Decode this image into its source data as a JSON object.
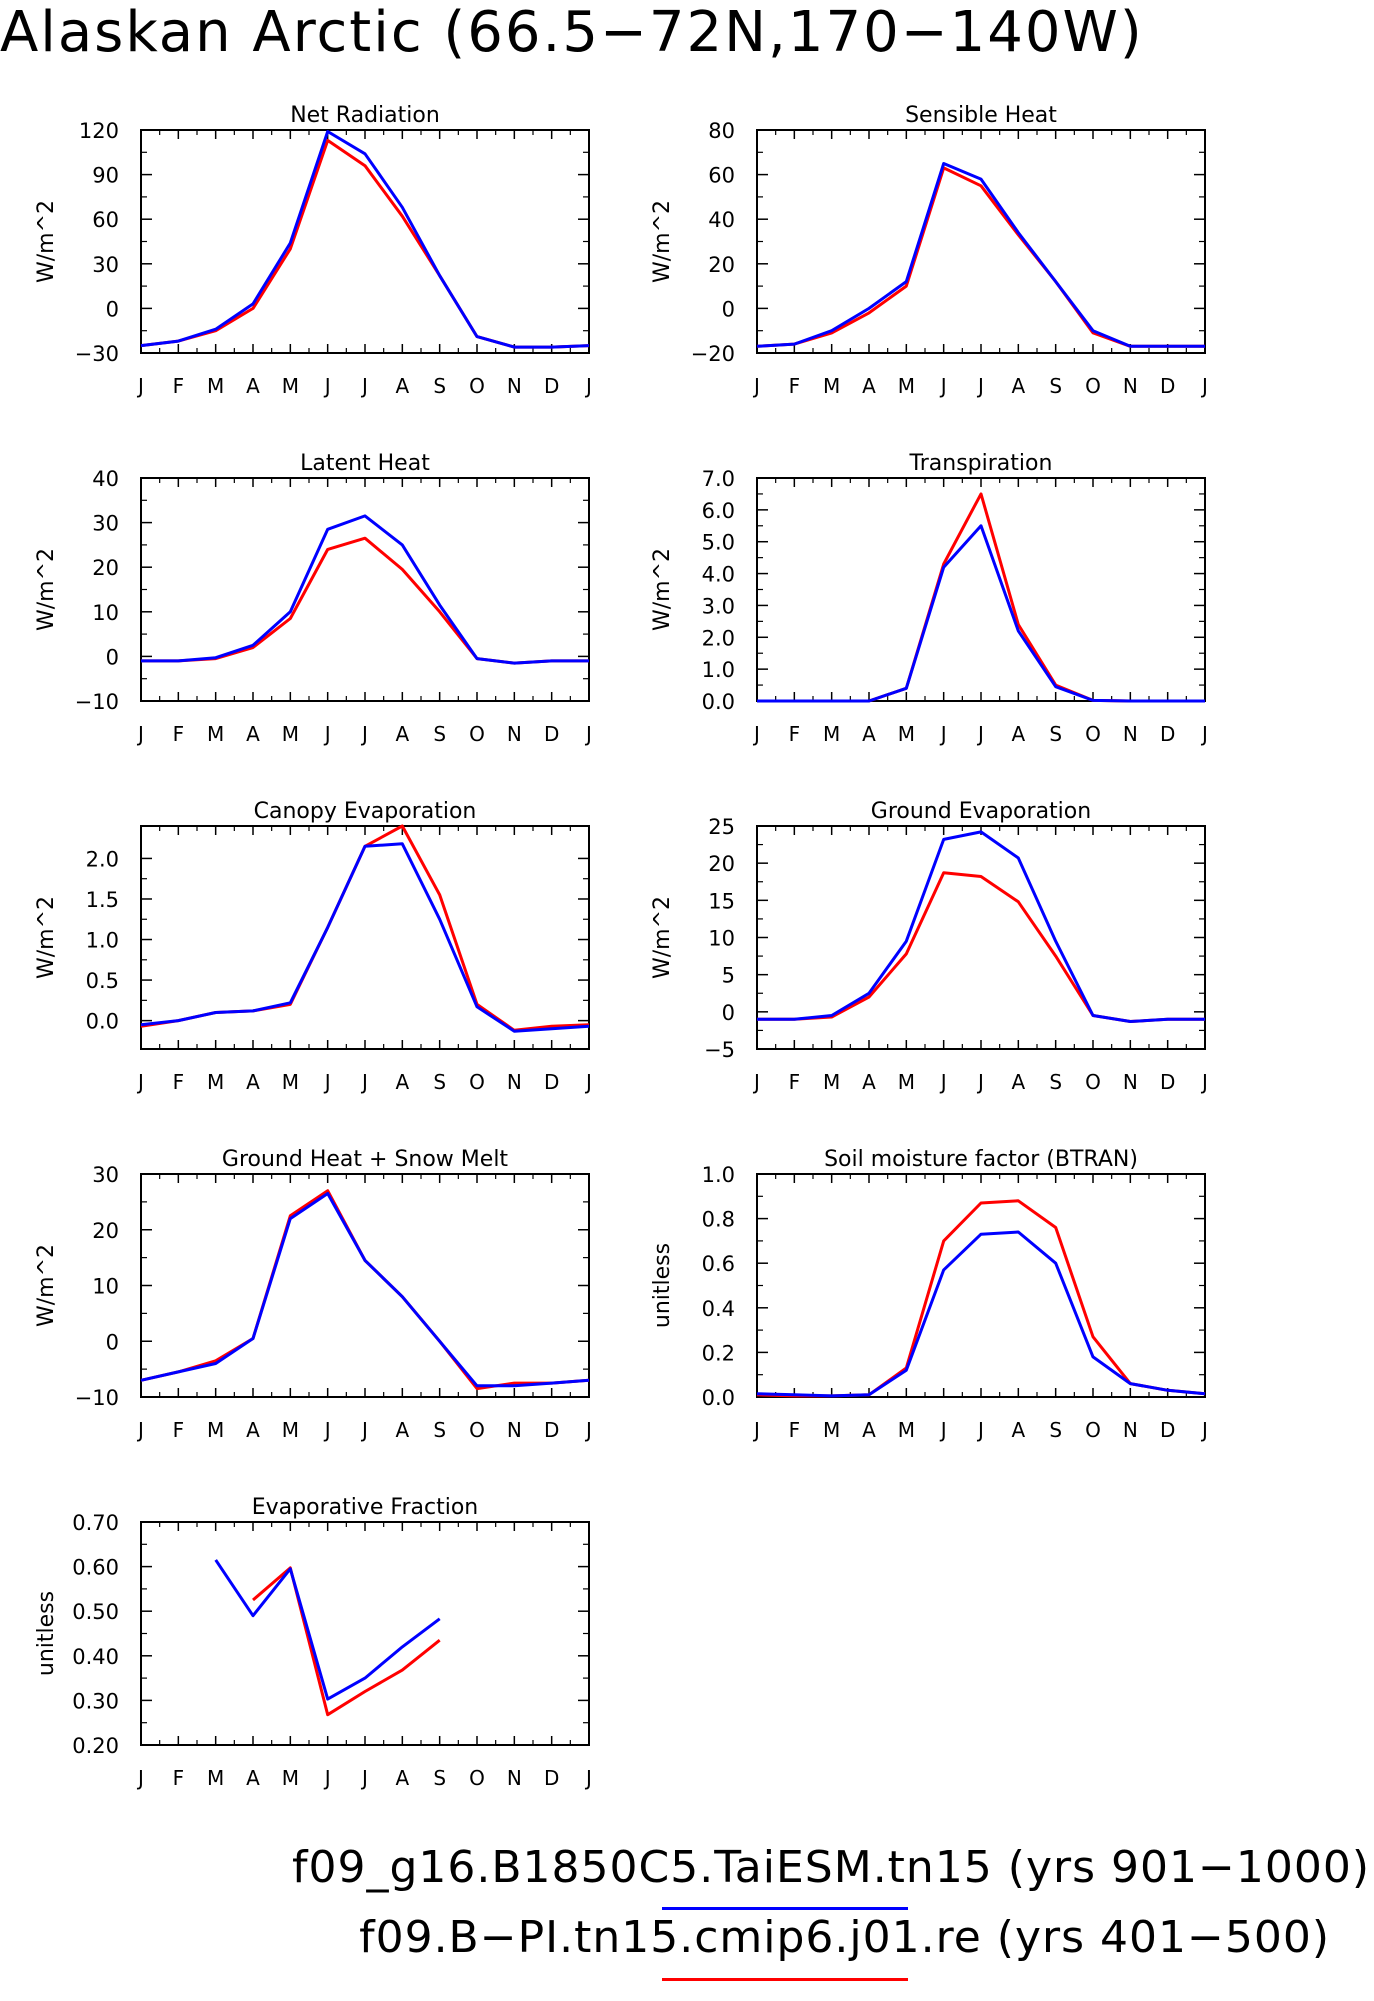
{
  "title": "Alaskan Arctic (66.5−72N,170−140W)",
  "colors": {
    "series_1": "#0000ff",
    "series_2": "#ff0000"
  },
  "legend": {
    "items": [
      {
        "label": "f09_g16.B1850C5.TaiESM.tn15 (yrs 901−1000)",
        "color": "#0000ff"
      },
      {
        "label": "f09.B−PI.tn15.cmip6.j01.re (yrs 401−500)",
        "color": "#ff0000"
      }
    ]
  },
  "chart_data": [
    {
      "type": "line",
      "title": "Net Radiation",
      "ylabel": "W/m^2",
      "x": [
        "J",
        "F",
        "M",
        "A",
        "M",
        "J",
        "J",
        "A",
        "S",
        "O",
        "N",
        "D",
        "J"
      ],
      "ylim": [
        -30,
        120
      ],
      "yticks": [
        -30,
        0,
        30,
        60,
        90,
        120
      ],
      "yticklabels": [
        "−30",
        "0",
        "30",
        "60",
        "90",
        "120"
      ],
      "series": [
        {
          "color": "#ff0000",
          "values": [
            -25,
            -22,
            -15,
            0,
            40,
            113,
            96,
            62,
            22,
            -19,
            -26,
            -26,
            -25
          ]
        },
        {
          "color": "#0000ff",
          "values": [
            -25,
            -22,
            -14,
            3,
            44,
            119,
            104,
            68,
            22,
            -19,
            -26,
            -26,
            -25
          ]
        }
      ]
    },
    {
      "type": "line",
      "title": "Sensible Heat",
      "ylabel": "W/m^2",
      "x": [
        "J",
        "F",
        "M",
        "A",
        "M",
        "J",
        "J",
        "A",
        "S",
        "O",
        "N",
        "D",
        "J"
      ],
      "ylim": [
        -20,
        80
      ],
      "yticks": [
        -20,
        0,
        20,
        40,
        60,
        80
      ],
      "yticklabels": [
        "−20",
        "0",
        "20",
        "40",
        "60",
        "80"
      ],
      "series": [
        {
          "color": "#ff0000",
          "values": [
            -17,
            -16,
            -11,
            -2,
            10,
            63,
            55,
            33,
            12,
            -11,
            -17,
            -17,
            -17
          ]
        },
        {
          "color": "#0000ff",
          "values": [
            -17,
            -16,
            -10,
            0,
            12,
            65,
            58,
            34,
            12,
            -10,
            -17,
            -17,
            -17
          ]
        }
      ]
    },
    {
      "type": "line",
      "title": "Latent Heat",
      "ylabel": "W/m^2",
      "x": [
        "J",
        "F",
        "M",
        "A",
        "M",
        "J",
        "J",
        "A",
        "S",
        "O",
        "N",
        "D",
        "J"
      ],
      "ylim": [
        -10,
        40
      ],
      "yticks": [
        -10,
        0,
        10,
        20,
        30,
        40
      ],
      "yticklabels": [
        "−10",
        "0",
        "10",
        "20",
        "30",
        "40"
      ],
      "series": [
        {
          "color": "#ff0000",
          "values": [
            -1,
            -1,
            -0.5,
            2,
            8.5,
            24,
            26.5,
            19.5,
            10,
            -0.5,
            -1.5,
            -1,
            -1
          ]
        },
        {
          "color": "#0000ff",
          "values": [
            -1,
            -1,
            -0.3,
            2.5,
            10,
            28.5,
            31.5,
            25,
            11.5,
            -0.5,
            -1.5,
            -1,
            -1
          ]
        }
      ]
    },
    {
      "type": "line",
      "title": "Transpiration",
      "ylabel": "W/m^2",
      "x": [
        "J",
        "F",
        "M",
        "A",
        "M",
        "J",
        "J",
        "A",
        "S",
        "O",
        "N",
        "D",
        "J"
      ],
      "ylim": [
        0,
        7
      ],
      "yticks": [
        0,
        1,
        2,
        3,
        4,
        5,
        6,
        7
      ],
      "yticklabels": [
        "0.0",
        "1.0",
        "2.0",
        "3.0",
        "4.0",
        "5.0",
        "6.0",
        "7.0"
      ],
      "series": [
        {
          "color": "#ff0000",
          "values": [
            0,
            0,
            0,
            0,
            0.4,
            4.3,
            6.5,
            2.4,
            0.5,
            0.02,
            0,
            0,
            0
          ]
        },
        {
          "color": "#0000ff",
          "values": [
            0,
            0,
            0,
            0,
            0.4,
            4.2,
            5.5,
            2.2,
            0.45,
            0.02,
            0,
            0,
            0
          ]
        }
      ]
    },
    {
      "type": "line",
      "title": "Canopy Evaporation",
      "ylabel": "W/m^2",
      "x": [
        "J",
        "F",
        "M",
        "A",
        "M",
        "J",
        "J",
        "A",
        "S",
        "O",
        "N",
        "D",
        "J"
      ],
      "ylim": [
        -0.35,
        2.4
      ],
      "yticks": [
        0,
        0.5,
        1.0,
        1.5,
        2.0
      ],
      "yticklabels": [
        "0.0",
        "0.5",
        "1.0",
        "1.5",
        "2.0"
      ],
      "series": [
        {
          "color": "#ff0000",
          "values": [
            -0.07,
            0,
            0.1,
            0.12,
            0.2,
            1.15,
            2.15,
            2.4,
            1.55,
            0.2,
            -0.12,
            -0.07,
            -0.05
          ]
        },
        {
          "color": "#0000ff",
          "values": [
            -0.05,
            0,
            0.1,
            0.12,
            0.22,
            1.15,
            2.15,
            2.18,
            1.25,
            0.17,
            -0.13,
            -0.1,
            -0.07
          ]
        }
      ]
    },
    {
      "type": "line",
      "title": "Ground Evaporation",
      "ylabel": "W/m^2",
      "x": [
        "J",
        "F",
        "M",
        "A",
        "M",
        "J",
        "J",
        "A",
        "S",
        "O",
        "N",
        "D",
        "J"
      ],
      "ylim": [
        -5,
        25
      ],
      "yticks": [
        -5,
        0,
        5,
        10,
        15,
        20,
        25
      ],
      "yticklabels": [
        "−5",
        "0",
        "5",
        "10",
        "15",
        "20",
        "25"
      ],
      "series": [
        {
          "color": "#ff0000",
          "values": [
            -1,
            -1,
            -0.7,
            2,
            7.8,
            18.7,
            18.2,
            14.8,
            7.5,
            -0.5,
            -1.3,
            -1,
            -1
          ]
        },
        {
          "color": "#0000ff",
          "values": [
            -1,
            -1,
            -0.5,
            2.5,
            9.5,
            23.2,
            24.2,
            20.7,
            9.5,
            -0.5,
            -1.3,
            -1,
            -1
          ]
        }
      ]
    },
    {
      "type": "line",
      "title": "Ground Heat + Snow Melt",
      "ylabel": "W/m^2",
      "x": [
        "J",
        "F",
        "M",
        "A",
        "M",
        "J",
        "J",
        "A",
        "S",
        "O",
        "N",
        "D",
        "J"
      ],
      "ylim": [
        -10,
        30
      ],
      "yticks": [
        -10,
        0,
        10,
        20,
        30
      ],
      "yticklabels": [
        "−10",
        "0",
        "10",
        "20",
        "30"
      ],
      "series": [
        {
          "color": "#ff0000",
          "values": [
            -7,
            -5.5,
            -3.5,
            0.5,
            22.5,
            27,
            14.5,
            8,
            0,
            -8.5,
            -7.5,
            -7.5,
            -7
          ]
        },
        {
          "color": "#0000ff",
          "values": [
            -7,
            -5.5,
            -4,
            0.5,
            22,
            26.5,
            14.5,
            8,
            0,
            -8,
            -8,
            -7.5,
            -7
          ]
        }
      ]
    },
    {
      "type": "line",
      "title": "Soil moisture factor (BTRAN)",
      "ylabel": "unitless",
      "x": [
        "J",
        "F",
        "M",
        "A",
        "M",
        "J",
        "J",
        "A",
        "S",
        "O",
        "N",
        "D",
        "J"
      ],
      "ylim": [
        0,
        1.0
      ],
      "yticks": [
        0,
        0.2,
        0.4,
        0.6,
        0.8,
        1.0
      ],
      "yticklabels": [
        "0.0",
        "0.2",
        "0.4",
        "0.6",
        "0.8",
        "1.0"
      ],
      "series": [
        {
          "color": "#ff0000",
          "values": [
            0.01,
            0.005,
            0.005,
            0.01,
            0.13,
            0.7,
            0.87,
            0.88,
            0.76,
            0.27,
            0.06,
            0.03,
            0.015
          ]
        },
        {
          "color": "#0000ff",
          "values": [
            0.015,
            0.01,
            0.005,
            0.01,
            0.12,
            0.57,
            0.73,
            0.74,
            0.6,
            0.18,
            0.06,
            0.03,
            0.015
          ]
        }
      ]
    },
    {
      "type": "line",
      "title": "Evaporative Fraction",
      "ylabel": "unitless",
      "x": [
        "J",
        "F",
        "M",
        "A",
        "M",
        "J",
        "J",
        "A",
        "S",
        "O",
        "N",
        "D",
        "J"
      ],
      "ylim": [
        0.2,
        0.7
      ],
      "yticks": [
        0.2,
        0.3,
        0.4,
        0.5,
        0.6,
        0.7
      ],
      "yticklabels": [
        "0.20",
        "0.30",
        "0.40",
        "0.50",
        "0.60",
        "0.70"
      ],
      "series": [
        {
          "color": "#ff0000",
          "values": [
            null,
            null,
            null,
            0.525,
            0.597,
            0.268,
            0.32,
            0.368,
            0.435,
            null,
            null,
            null,
            null
          ]
        },
        {
          "color": "#0000ff",
          "values": [
            null,
            null,
            0.615,
            0.49,
            0.595,
            0.303,
            0.35,
            0.42,
            0.483,
            null,
            null,
            null,
            null
          ]
        }
      ]
    }
  ]
}
